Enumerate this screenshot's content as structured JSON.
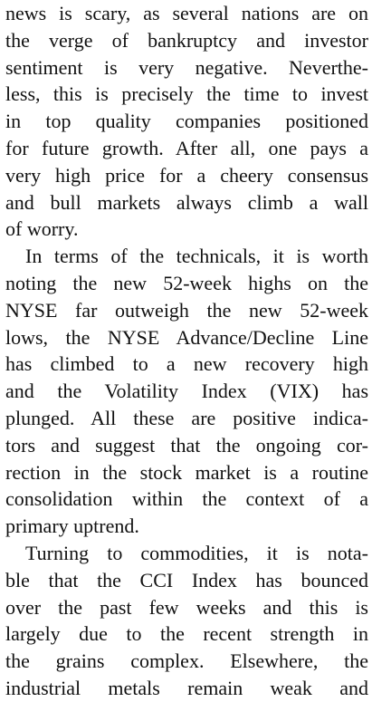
{
  "paragraphs": [
    {
      "lines": [
        "news is scary, as several nations are on",
        "the verge of bankruptcy and investor",
        "sentiment is very negative. Neverthe-",
        "less, this is precisely the time to invest",
        "in top quality companies positioned",
        "for future growth. After all, one pays a",
        "very high price for a cheery consensus",
        "and bull markets always climb a wall",
        "of worry."
      ]
    },
    {
      "lines": [
        "In terms of the technicals, it is worth",
        "noting the new 52-week highs on the",
        "NYSE far outweigh the new 52-week",
        "lows, the NYSE Advance/Decline Line",
        "has climbed to a new recovery high",
        "and the Volatility Index (VIX) has",
        "plunged. All these are positive indica-",
        "tors and suggest that the ongoing cor-",
        "rection in the stock market is a routine",
        "consolidation within the context of a",
        "primary uptrend."
      ]
    },
    {
      "lines": [
        "Turning to commodities, it is nota-",
        "ble that the CCI Index has bounced",
        "over the past few weeks and this is",
        "largely due to the recent strength in",
        "the grains complex. Elsewhere, the",
        "industrial metals remain weak and"
      ]
    }
  ]
}
